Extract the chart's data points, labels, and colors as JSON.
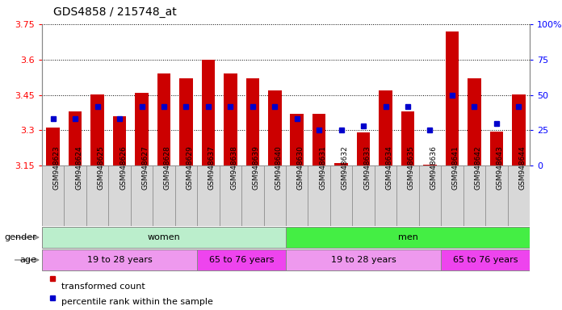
{
  "title": "GDS4858 / 215748_at",
  "samples": [
    "GSM948623",
    "GSM948624",
    "GSM948625",
    "GSM948626",
    "GSM948627",
    "GSM948628",
    "GSM948629",
    "GSM948637",
    "GSM948638",
    "GSM948639",
    "GSM948640",
    "GSM948630",
    "GSM948631",
    "GSM948632",
    "GSM948633",
    "GSM948634",
    "GSM948635",
    "GSM948636",
    "GSM948641",
    "GSM948642",
    "GSM948643",
    "GSM948644"
  ],
  "transformed_count": [
    3.31,
    3.38,
    3.45,
    3.36,
    3.46,
    3.54,
    3.52,
    3.6,
    3.54,
    3.52,
    3.47,
    3.37,
    3.37,
    3.16,
    3.29,
    3.47,
    3.38,
    3.155,
    3.72,
    3.52,
    3.295,
    3.45
  ],
  "percentile_rank": [
    33,
    33,
    42,
    33,
    42,
    42,
    42,
    42,
    42,
    42,
    42,
    33,
    25,
    25,
    28,
    42,
    42,
    25,
    50,
    42,
    30,
    42
  ],
  "y_min": 3.15,
  "y_max": 3.75,
  "y_ticks": [
    3.15,
    3.3,
    3.45,
    3.6,
    3.75
  ],
  "y_tick_labels": [
    "3.15",
    "3.3",
    "3.45",
    "3.6",
    "3.75"
  ],
  "right_y_ticks": [
    0,
    25,
    50,
    75,
    100
  ],
  "right_y_labels": [
    "0",
    "25",
    "50",
    "75",
    "100%"
  ],
  "bar_color": "#cc0000",
  "dot_color": "#0000cc",
  "bar_bottom": 3.15,
  "women_color": "#bbeecc",
  "men_color": "#44ee44",
  "age_light_color": "#ee99ee",
  "age_dark_color": "#ee44ee",
  "legend_red_label": "transformed count",
  "legend_blue_label": "percentile rank within the sample",
  "background_color": "#ffffff",
  "n_women": 11,
  "n_men": 11,
  "age_splits": [
    7,
    11,
    18,
    22
  ]
}
